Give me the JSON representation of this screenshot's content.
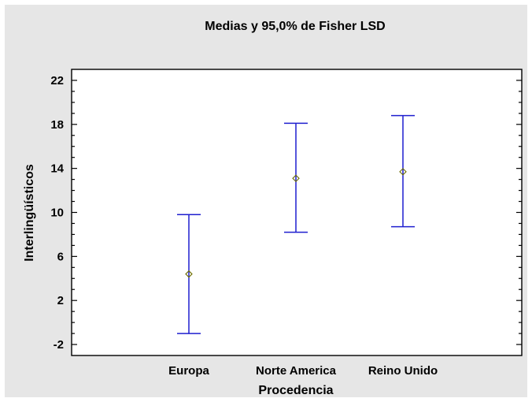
{
  "chart_data": {
    "type": "errorbar",
    "title": "Medias y 95,0% de Fisher LSD",
    "xlabel": "Procedencia",
    "ylabel": "Interlingüísticos",
    "categories": [
      "Europa",
      "Norte America",
      "Reino Unido"
    ],
    "means": [
      4.4,
      13.1,
      13.7
    ],
    "lower": [
      -1.0,
      8.2,
      8.7
    ],
    "upper": [
      9.8,
      18.1,
      18.8
    ],
    "ylim": [
      -3,
      23
    ],
    "yticks": [
      -2,
      2,
      6,
      10,
      14,
      18,
      22
    ],
    "grid": false,
    "legend": "none",
    "colors": {
      "errorbar": "#1f1fcf",
      "marker": "#6b6b00",
      "panel": "#e6e6e6"
    }
  }
}
